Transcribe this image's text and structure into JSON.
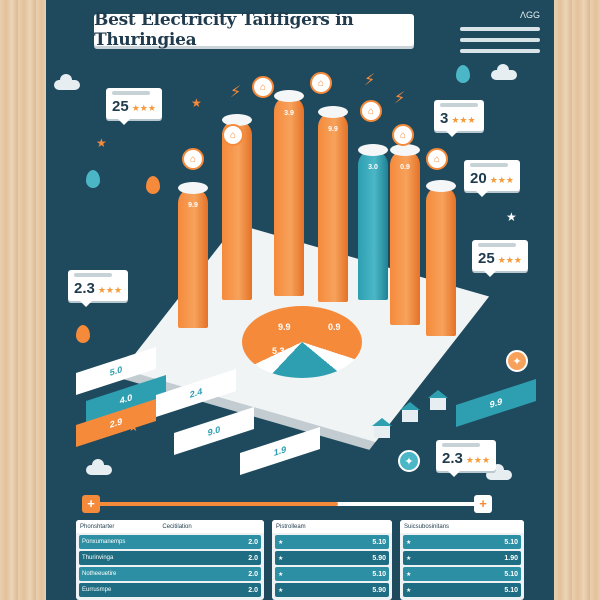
{
  "title": "Best Electricity Taiffigers in Thuringiea",
  "top_right_label": "ΛGG",
  "cards": [
    {
      "value": "25",
      "stars": "★★★"
    },
    {
      "value": "3",
      "stars": "★★★"
    },
    {
      "value": "20",
      "stars": "★★★"
    },
    {
      "value": "25",
      "stars": "★★★"
    },
    {
      "value": "2.3",
      "stars": "★★★"
    },
    {
      "value": "2.3",
      "stars": "★★★"
    }
  ],
  "bar_labels": [
    "9.9",
    "9.9",
    "3.9",
    "9.9",
    "3.0",
    "0.9"
  ],
  "pie_labels": [
    "9.9",
    "0.9",
    "5.3"
  ],
  "tickets": [
    "5.0",
    "4.0",
    "2.9",
    "2.4",
    "9.0",
    "1.9",
    "9.9"
  ],
  "colors": {
    "orange": "#f58a3b",
    "teal": "#2d9fb1",
    "navy": "#1f4a5e"
  },
  "slider": {
    "left_icon": "+",
    "right_icon": "+",
    "fill": 0.6
  },
  "tables": [
    {
      "headers": [
        "Phonshtarter",
        "Cecitilation"
      ],
      "rows": [
        {
          "name": "Ponxumanemps",
          "val": "2.0"
        },
        {
          "name": "Thurinvinga",
          "val": "2.0"
        },
        {
          "name": "Notheeuetire",
          "val": "2.0"
        },
        {
          "name": "Eurrusmpe",
          "val": "2.0"
        }
      ]
    },
    {
      "headers": [
        "Pistrolleam"
      ],
      "rows": [
        {
          "name": "★",
          "val": "5.10"
        },
        {
          "name": "★",
          "val": "5.90"
        },
        {
          "name": "★",
          "val": "5.10"
        },
        {
          "name": "★",
          "val": "5.90"
        }
      ]
    },
    {
      "headers": [
        "Suicsubosinitans"
      ],
      "rows": [
        {
          "name": "★",
          "val": "5.10"
        },
        {
          "name": "★",
          "val": "1.90"
        },
        {
          "name": "★",
          "val": "5.10"
        },
        {
          "name": "★",
          "val": "5.10"
        }
      ]
    }
  ]
}
